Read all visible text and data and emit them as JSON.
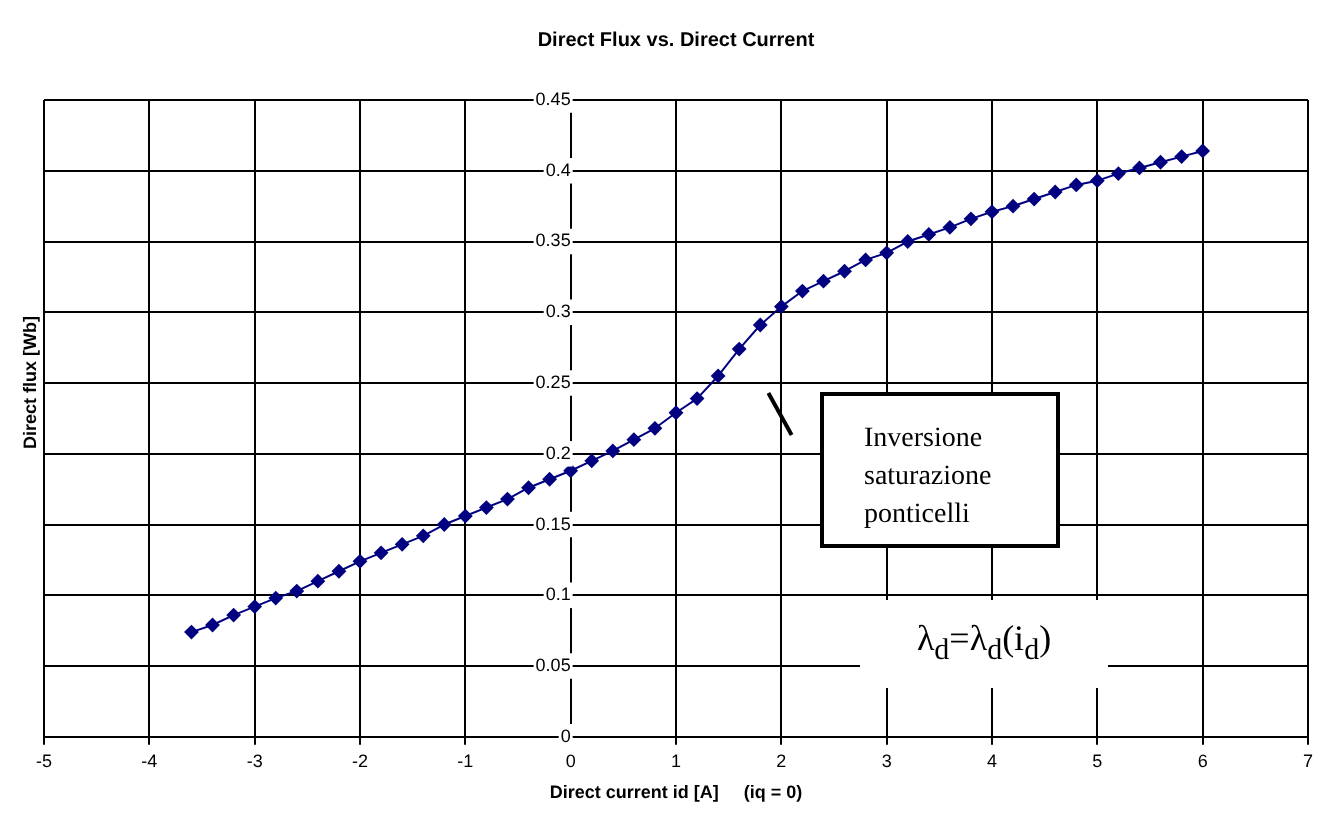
{
  "chart_data": {
    "type": "line",
    "title": "Direct Flux vs. Direct Current",
    "xlabel": "Direct current id [A]     (iq = 0)",
    "ylabel": "Direct flux [Wb]",
    "x": [
      -3.6,
      -3.4,
      -3.2,
      -3.0,
      -2.8,
      -2.6,
      -2.4,
      -2.2,
      -2.0,
      -1.8,
      -1.6,
      -1.4,
      -1.2,
      -1.0,
      -0.8,
      -0.6,
      -0.4,
      -0.2,
      0,
      0.2,
      0.4,
      0.6,
      0.8,
      1.0,
      1.2,
      1.4,
      1.6,
      1.8,
      2.0,
      2.2,
      2.4,
      2.6,
      2.8,
      3.0,
      3.2,
      3.4,
      3.6,
      3.8,
      4.0,
      4.2,
      4.4,
      4.6,
      4.8,
      5.0,
      5.2,
      5.4,
      5.6,
      5.8,
      6.0
    ],
    "series": [
      {
        "color": "#000080",
        "values": [
          0.074,
          0.079,
          0.086,
          0.092,
          0.098,
          0.103,
          0.11,
          0.117,
          0.124,
          0.13,
          0.136,
          0.142,
          0.15,
          0.156,
          0.162,
          0.168,
          0.176,
          0.182,
          0.188,
          0.195,
          0.202,
          0.21,
          0.218,
          0.229,
          0.239,
          0.255,
          0.274,
          0.291,
          0.304,
          0.315,
          0.322,
          0.329,
          0.337,
          0.342,
          0.35,
          0.355,
          0.36,
          0.366,
          0.371,
          0.375,
          0.38,
          0.385,
          0.39,
          0.393,
          0.398,
          0.402,
          0.406,
          0.41,
          0.414
        ]
      }
    ],
    "xlim": [
      -5,
      7
    ],
    "xticks": [
      -5,
      -4,
      -3,
      -2,
      -1,
      0,
      1,
      2,
      3,
      4,
      5,
      6,
      7
    ],
    "ylim": [
      0,
      0.45
    ],
    "yticks": [
      0,
      0.05,
      0.1,
      0.15,
      0.2,
      0.25,
      0.3,
      0.35,
      0.4,
      0.45
    ],
    "grid": true,
    "legend": false,
    "marker": "diamond",
    "line_style": "solid",
    "annotations": [
      "Inversione\nsaturazione\nponticelli",
      "λ$_{d}$=λ$_{d}$(i$_{d}$)"
    ]
  }
}
